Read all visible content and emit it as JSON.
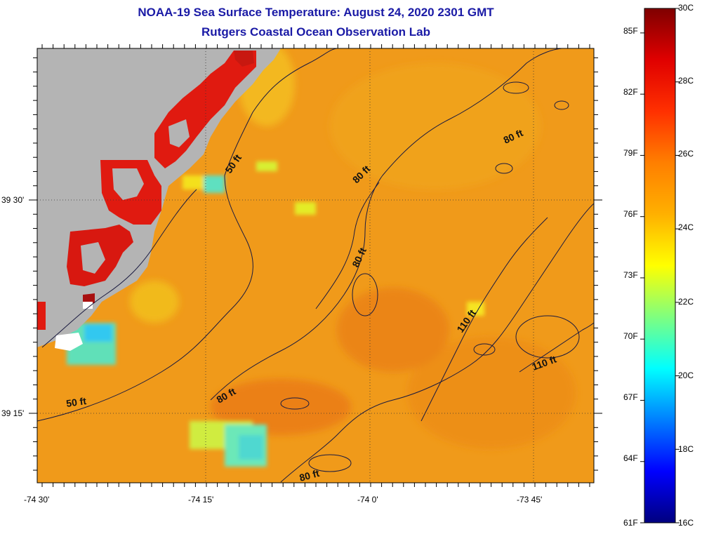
{
  "title": "NOAA-19 Sea Surface Temperature:  August 24, 2020 2301 GMT",
  "subtitle": "Rutgers Coastal Ocean Observation Lab",
  "axes": {
    "lon_labels": [
      "-74 30'",
      "-74 15'",
      "-74 0'",
      "-73 45'"
    ],
    "lat_labels": [
      "39 30'",
      "39 15'"
    ]
  },
  "contour_labels": [
    "50 ft",
    "50 ft",
    "80 ft",
    "80 ft",
    "80 ft",
    "80 ft",
    "80 ft",
    "110 ft",
    "110 ft"
  ],
  "colorbar": {
    "fahrenheit": [
      "85F",
      "82F",
      "79F",
      "76F",
      "73F",
      "70F",
      "67F",
      "64F",
      "61F"
    ],
    "celsius": [
      "30C",
      "28C",
      "26C",
      "24C",
      "22C",
      "20C",
      "18C",
      "16C"
    ],
    "colors": [
      "#00007f",
      "#0000ff",
      "#007fff",
      "#00ffff",
      "#7fff7f",
      "#ffff00",
      "#ffb000",
      "#ff7f00",
      "#ff3000",
      "#e00000",
      "#7f0000"
    ]
  },
  "colors": {
    "land": "#b4b4b4",
    "ocean": "#f09a1a",
    "title": "#1a1aa6"
  }
}
